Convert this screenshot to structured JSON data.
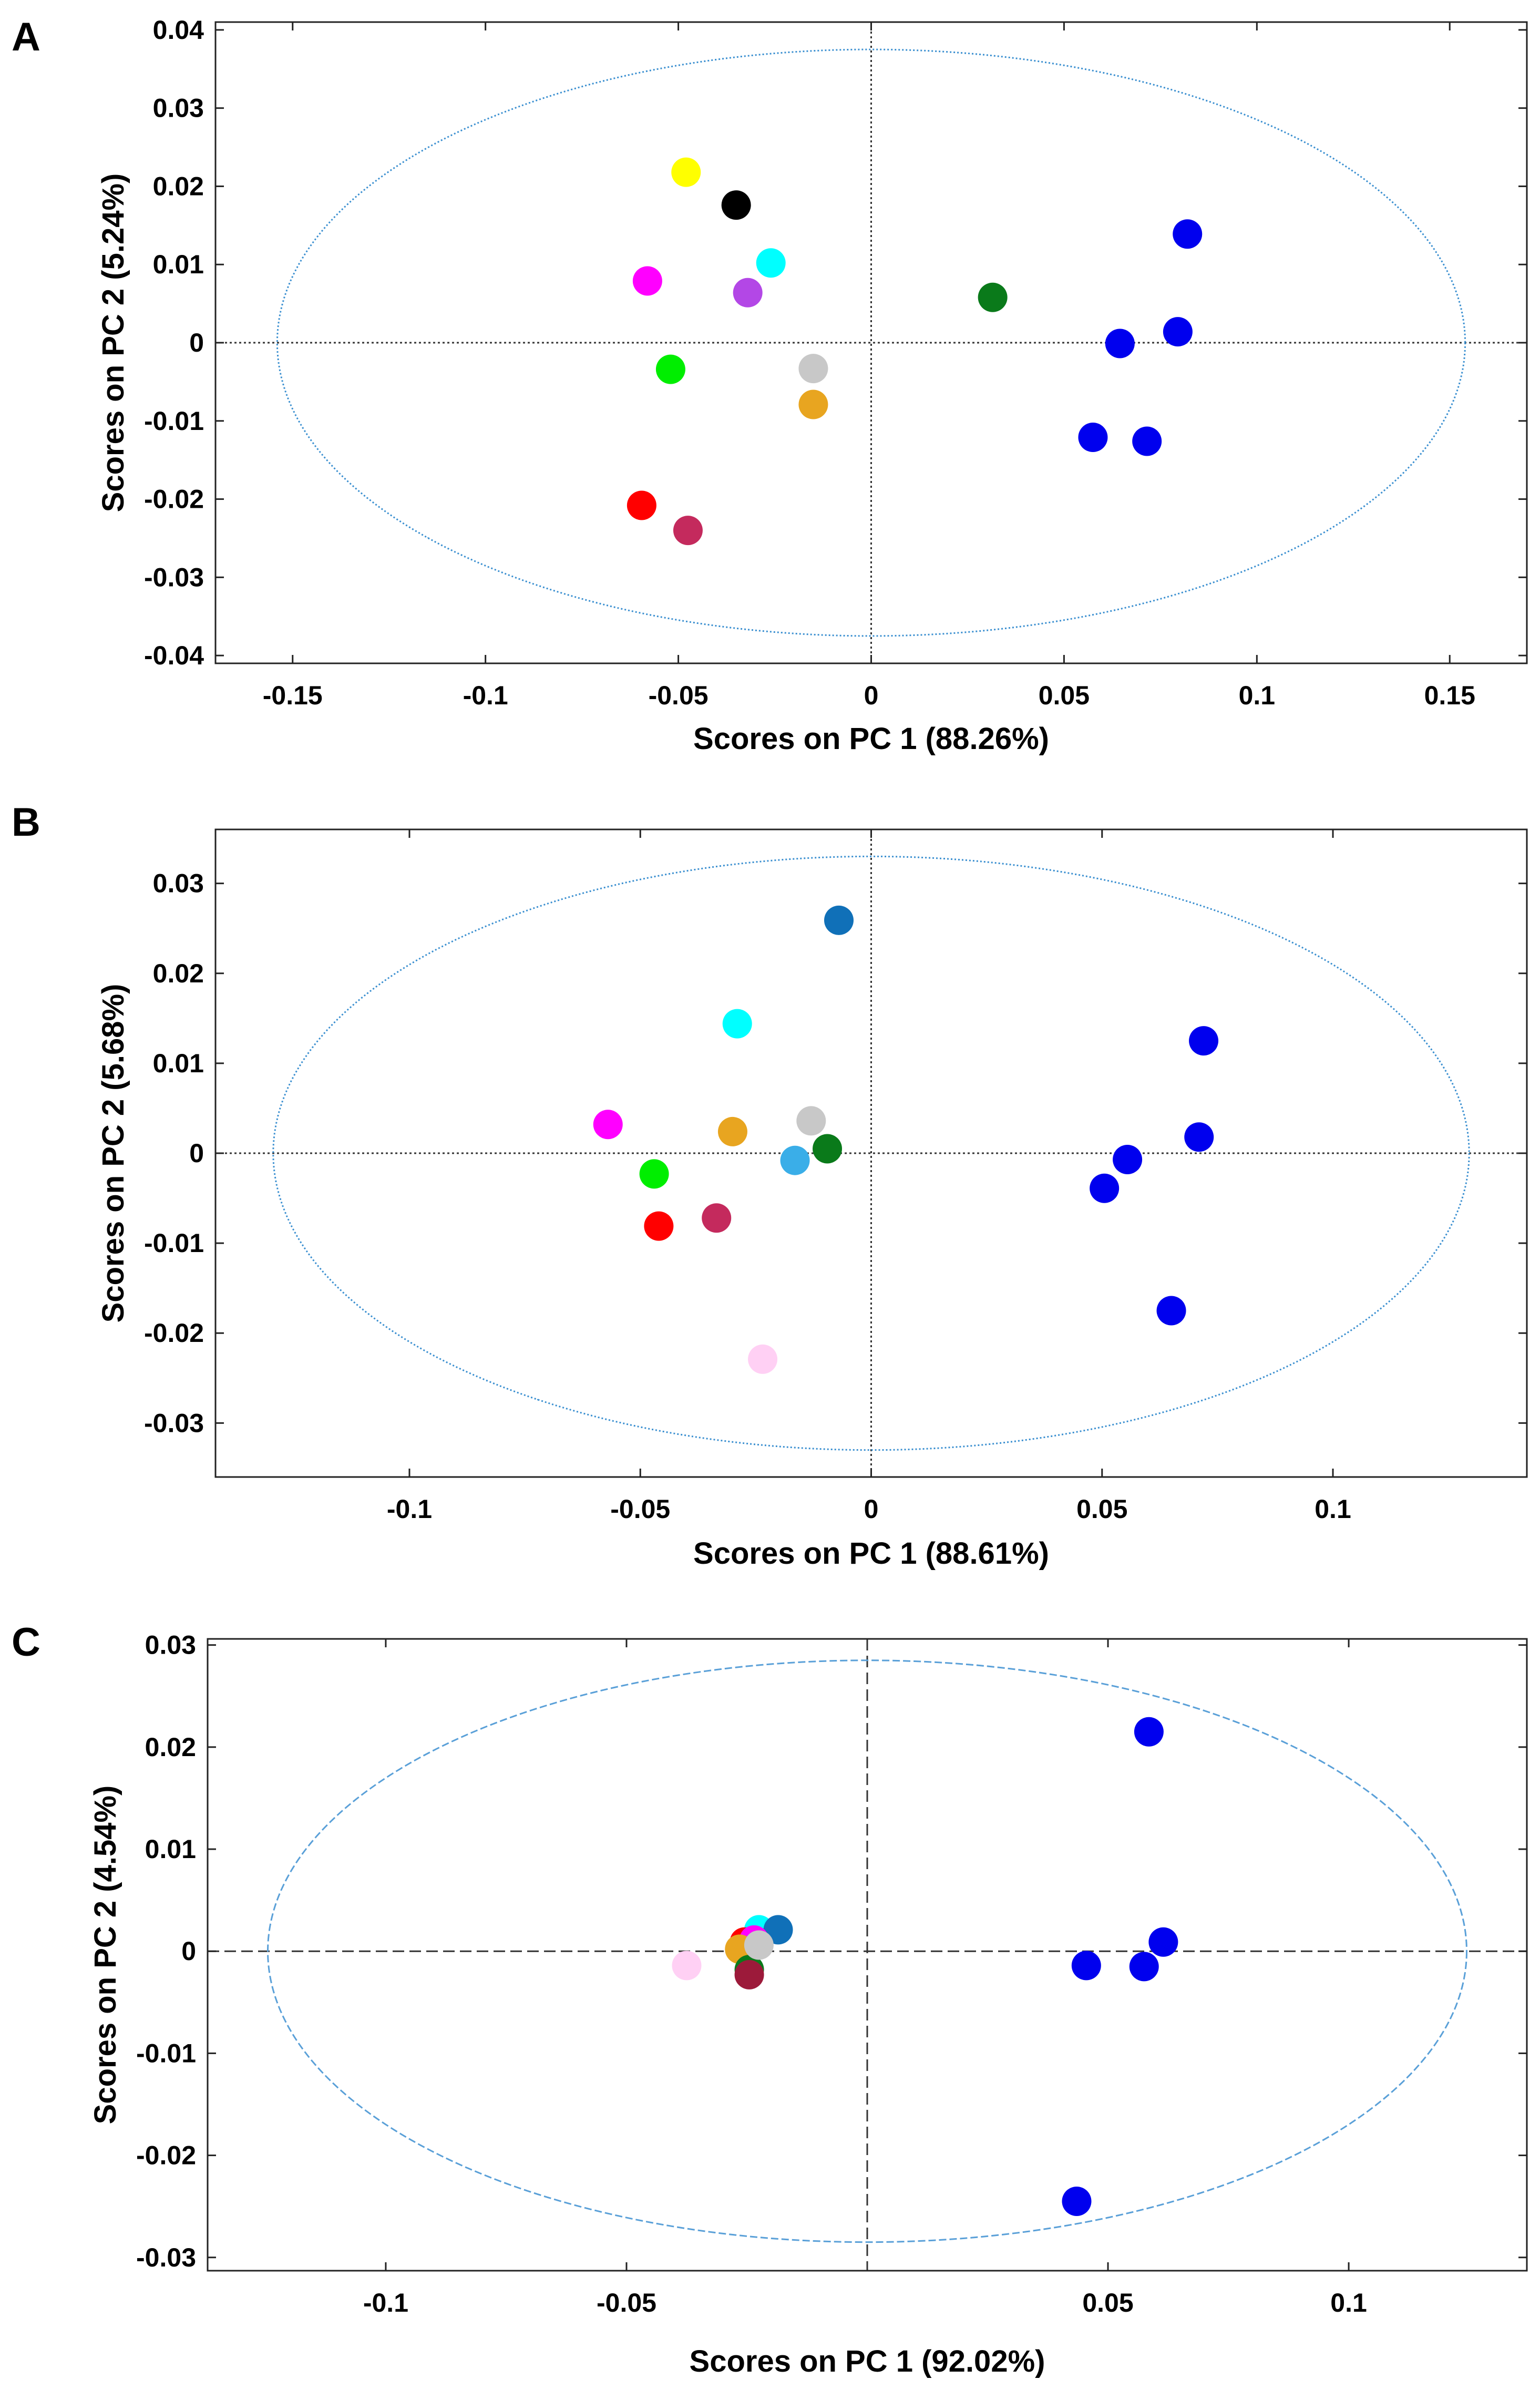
{
  "chart_data": [
    {
      "panel": "A",
      "type": "scatter",
      "xlabel": "Scores on PC 1 (88.26%)",
      "ylabel": "Scores on PC 2 (5.24%)",
      "xlim": [
        -0.17,
        0.17
      ],
      "ylim": [
        -0.041,
        0.041
      ],
      "xticks": [
        -0.15,
        -0.1,
        -0.05,
        0,
        0.05,
        0.1,
        0.15
      ],
      "xtick_labels": [
        "-0.15",
        "-0.1",
        "-0.05",
        "0",
        "0.05",
        "0.1",
        "0.15"
      ],
      "yticks": [
        -0.04,
        -0.03,
        -0.02,
        -0.01,
        0,
        0.01,
        0.02,
        0.03,
        0.04
      ],
      "ytick_labels": [
        "-0.04",
        "-0.03",
        "-0.02",
        "-0.01",
        "0",
        "0.01",
        "0.02",
        "0.03",
        "0.04"
      ],
      "ellipse": {
        "rx": 0.154,
        "ry": 0.0375,
        "style": "dotted",
        "color": "#3a8fd0"
      },
      "zero_line_style": "dotted",
      "points": [
        {
          "x": -0.048,
          "y": 0.0218,
          "color": "#ffff00"
        },
        {
          "x": -0.035,
          "y": 0.0176,
          "color": "#000000"
        },
        {
          "x": -0.058,
          "y": 0.0079,
          "color": "#ff00ff"
        },
        {
          "x": -0.026,
          "y": 0.0102,
          "color": "#00ffff"
        },
        {
          "x": -0.032,
          "y": 0.0064,
          "color": "#b347e6"
        },
        {
          "x": -0.052,
          "y": -0.0034,
          "color": "#00ee00"
        },
        {
          "x": -0.015,
          "y": -0.0033,
          "color": "#c8c8c8"
        },
        {
          "x": -0.015,
          "y": -0.0079,
          "color": "#e8a520"
        },
        {
          "x": -0.0595,
          "y": -0.0208,
          "color": "#ff0000"
        },
        {
          "x": -0.0475,
          "y": -0.024,
          "color": "#c42a5d"
        },
        {
          "x": 0.0315,
          "y": 0.0058,
          "color": "#0a7a1a"
        },
        {
          "x": 0.082,
          "y": 0.0139,
          "color": "#0000ee"
        },
        {
          "x": 0.0645,
          "y": -0.0001,
          "color": "#0000ee"
        },
        {
          "x": 0.0795,
          "y": 0.0014,
          "color": "#0000ee"
        },
        {
          "x": 0.0575,
          "y": -0.0121,
          "color": "#0000ee"
        },
        {
          "x": 0.0715,
          "y": -0.0126,
          "color": "#0000ee"
        }
      ]
    },
    {
      "panel": "B",
      "type": "scatter",
      "xlabel": "Scores on PC 1 (88.61%)",
      "ylabel": "Scores on PC 2 (5.68%)",
      "xlim": [
        -0.142,
        0.142
      ],
      "ylim": [
        -0.036,
        0.036
      ],
      "xticks": [
        -0.1,
        -0.05,
        0,
        0.05,
        0.1
      ],
      "xtick_labels": [
        "-0.1",
        "-0.05",
        "0",
        "0.05",
        "0.1"
      ],
      "yticks": [
        -0.03,
        -0.02,
        -0.01,
        0,
        0.01,
        0.02,
        0.03
      ],
      "ytick_labels": [
        "-0.03",
        "-0.02",
        "-0.01",
        "0",
        "0.01",
        "0.02",
        "0.03"
      ],
      "ellipse": {
        "rx": 0.1295,
        "ry": 0.033,
        "style": "dotted",
        "color": "#3a8fd0"
      },
      "zero_line_style": "dotted",
      "points": [
        {
          "x": -0.007,
          "y": 0.0259,
          "color": "#1070b8"
        },
        {
          "x": -0.029,
          "y": 0.0144,
          "color": "#00ffff"
        },
        {
          "x": -0.057,
          "y": 0.0032,
          "color": "#ff00ff"
        },
        {
          "x": -0.03,
          "y": 0.0024,
          "color": "#e8a520"
        },
        {
          "x": -0.013,
          "y": 0.0036,
          "color": "#c8c8c8"
        },
        {
          "x": -0.0165,
          "y": -0.0008,
          "color": "#3aaee8"
        },
        {
          "x": -0.0095,
          "y": 0.0005,
          "color": "#0a7a1a"
        },
        {
          "x": -0.047,
          "y": -0.0023,
          "color": "#00ee00"
        },
        {
          "x": -0.046,
          "y": -0.0081,
          "color": "#ff0000"
        },
        {
          "x": -0.0335,
          "y": -0.0072,
          "color": "#c42a5d"
        },
        {
          "x": -0.0235,
          "y": -0.0229,
          "color": "#ffd0f4"
        },
        {
          "x": 0.072,
          "y": 0.0125,
          "color": "#0000ee"
        },
        {
          "x": 0.071,
          "y": 0.0018,
          "color": "#0000ee"
        },
        {
          "x": 0.0555,
          "y": -0.0007,
          "color": "#0000ee"
        },
        {
          "x": 0.0505,
          "y": -0.0039,
          "color": "#0000ee"
        },
        {
          "x": 0.065,
          "y": -0.0175,
          "color": "#0000ee"
        }
      ]
    },
    {
      "panel": "C",
      "type": "scatter",
      "xlabel": "Scores on PC 1 (92.02%)",
      "ylabel": "Scores on PC 2 (4.54%)",
      "xlim": [
        -0.137,
        0.137
      ],
      "ylim": [
        -0.0313,
        0.0306
      ],
      "xticks": [
        -0.1,
        -0.05,
        0.05,
        0.1
      ],
      "xtick_labels": [
        "-0.1",
        "-0.05",
        "0.05",
        "0.1"
      ],
      "yticks": [
        -0.03,
        -0.02,
        -0.01,
        0,
        0.01,
        0.02,
        0.03
      ],
      "ytick_labels": [
        "-0.03",
        "-0.02",
        "-0.01",
        "0",
        "0.01",
        "0.02",
        "0.03"
      ],
      "ellipse": {
        "rx": 0.1245,
        "ry": 0.0285,
        "style": "dashed",
        "color": "#5aa0d8"
      },
      "zero_line_style": "dashed",
      "points": [
        {
          "x": 0.0585,
          "y": 0.0215,
          "color": "#0000ee"
        },
        {
          "x": 0.0615,
          "y": 0.0009,
          "color": "#0000ee"
        },
        {
          "x": 0.0455,
          "y": -0.0014,
          "color": "#0000ee"
        },
        {
          "x": 0.0575,
          "y": -0.0015,
          "color": "#0000ee"
        },
        {
          "x": 0.0435,
          "y": -0.0245,
          "color": "#0000ee"
        },
        {
          "x": -0.0375,
          "y": -0.0014,
          "color": "#ffd0f4"
        },
        {
          "x": -0.0225,
          "y": 0.0021,
          "color": "#00ffff"
        },
        {
          "x": -0.0185,
          "y": 0.0021,
          "color": "#1070b8"
        },
        {
          "x": -0.0255,
          "y": 0.0009,
          "color": "#ff0000"
        },
        {
          "x": -0.0235,
          "y": 0.0011,
          "color": "#ff00ff"
        },
        {
          "x": -0.0265,
          "y": 0.0002,
          "color": "#e8a520"
        },
        {
          "x": -0.0245,
          "y": -0.0018,
          "color": "#0a7a1a"
        },
        {
          "x": -0.0245,
          "y": -0.0023,
          "color": "#9c1a3a"
        },
        {
          "x": -0.0225,
          "y": 0.0006,
          "color": "#c8c8c8"
        }
      ]
    }
  ]
}
